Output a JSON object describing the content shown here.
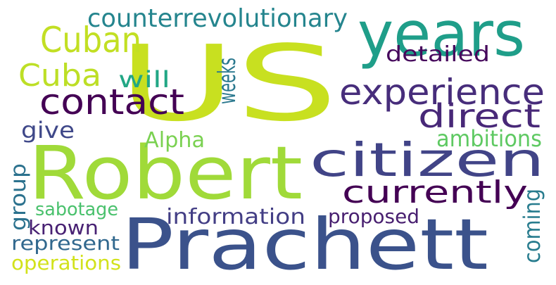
{
  "word_cloud": {
    "words": [
      {
        "text": "US",
        "color": "#c8e020"
      },
      {
        "text": "Prachett",
        "color": "#3b528b"
      },
      {
        "text": "Robert",
        "color": "#a0da39"
      },
      {
        "text": "citizen",
        "color": "#414487"
      },
      {
        "text": "years",
        "color": "#1f9e89"
      },
      {
        "text": "experience",
        "color": "#472d7b"
      },
      {
        "text": "direct",
        "color": "#482878"
      },
      {
        "text": "contact",
        "color": "#440154"
      },
      {
        "text": "currently",
        "color": "#440154"
      },
      {
        "text": "Cuban",
        "color": "#c2df23"
      },
      {
        "text": "Cuba",
        "color": "#bddf26"
      },
      {
        "text": "counterrevolutionary",
        "color": "#25858e"
      },
      {
        "text": "detailed",
        "color": "#46085c"
      },
      {
        "text": "will",
        "color": "#22a785"
      },
      {
        "text": "weeks",
        "color": "#2a788e"
      },
      {
        "text": "give",
        "color": "#3f4889"
      },
      {
        "text": "Alpha",
        "color": "#7ad151"
      },
      {
        "text": "ambitions",
        "color": "#5ec962"
      },
      {
        "text": "group",
        "color": "#2c728e"
      },
      {
        "text": "sabotage",
        "color": "#4ac16d"
      },
      {
        "text": "information",
        "color": "#433e85"
      },
      {
        "text": "proposed",
        "color": "#481f70"
      },
      {
        "text": "coming",
        "color": "#287c8e"
      },
      {
        "text": "known",
        "color": "#482173"
      },
      {
        "text": "represent",
        "color": "#31688e"
      },
      {
        "text": "operations",
        "color": "#d2e21b"
      }
    ]
  }
}
